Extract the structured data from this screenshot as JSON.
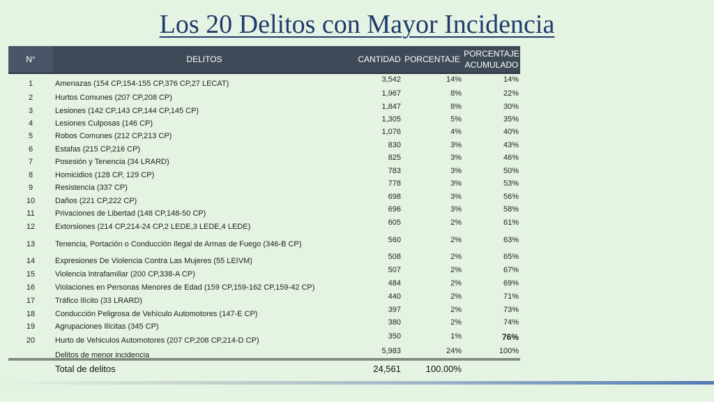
{
  "title": "Los 20 Delitos con Mayor Incidencia",
  "header": {
    "n": "N°",
    "delitos": "DELITOS",
    "cantidad": "CANTIDAD",
    "porcentaje": "PORCENTAJE",
    "acumulado": "PORCENTAJE ACUMULADO"
  },
  "rows": [
    {
      "n": "1",
      "delito": "Amenazas (154 CP,154-155 CP,376 CP,27 LECAT)",
      "cantidad": "3,542",
      "pct": "14%",
      "acum": "14%"
    },
    {
      "n": "2",
      "delito": "Hurtos Comunes (207 CP,208 CP)",
      "cantidad": "1,967",
      "pct": "8%",
      "acum": "22%"
    },
    {
      "n": "3",
      "delito": "Lesiones (142 CP,143 CP,144 CP,145 CP)",
      "cantidad": "1,847",
      "pct": "8%",
      "acum": "30%"
    },
    {
      "n": "4",
      "delito": "Lesiones Culposas (146 CP)",
      "cantidad": "1,305",
      "pct": "5%",
      "acum": "35%"
    },
    {
      "n": "5",
      "delito": "Robos Comunes (212 CP,213 CP)",
      "cantidad": "1,076",
      "pct": "4%",
      "acum": "40%"
    },
    {
      "n": "6",
      "delito": "Estafas (215 CP,216 CP)",
      "cantidad": "830",
      "pct": "3%",
      "acum": "43%"
    },
    {
      "n": "7",
      "delito": "Posesión y Tenencia (34 LRARD)",
      "cantidad": "825",
      "pct": "3%",
      "acum": "46%"
    },
    {
      "n": "8",
      "delito": "Homicidios (128 CP, 129 CP)",
      "cantidad": "783",
      "pct": "3%",
      "acum": "50%"
    },
    {
      "n": "9",
      "delito": "Resistencia (337 CP)",
      "cantidad": "778",
      "pct": "3%",
      "acum": "53%"
    },
    {
      "n": "10",
      "delito": "Daños (221 CP,222 CP)",
      "cantidad": "698",
      "pct": "3%",
      "acum": "56%"
    },
    {
      "n": "11",
      "delito": "Privaciones de Libertad (148 CP,148-50 CP)",
      "cantidad": "696",
      "pct": "3%",
      "acum": "58%"
    },
    {
      "n": "12",
      "delito": "Extorsiones (214 CP,214-24 CP,2 LEDE,3 LEDE,4 LEDE)",
      "cantidad": "605",
      "pct": "2%",
      "acum": "61%"
    },
    {
      "n": "13",
      "delito": "Tenencia, Portación o Conducción Ilegal de Armas de Fuego (346-B CP)",
      "cantidad": "560",
      "pct": "2%",
      "acum": "63%"
    },
    {
      "n": "14",
      "delito": "Expresiones De Violencia Contra Las Mujeres (55 LEIVM)",
      "cantidad": "508",
      "pct": "2%",
      "acum": "65%"
    },
    {
      "n": "15",
      "delito": "Violencia Intrafamiliar (200 CP,338-A CP)",
      "cantidad": "507",
      "pct": "2%",
      "acum": "67%"
    },
    {
      "n": "16",
      "delito": "Violaciones en Personas Menores de Edad (159 CP,159-162 CP,159-42 CP)",
      "cantidad": "484",
      "pct": "2%",
      "acum": "69%"
    },
    {
      "n": "17",
      "delito": "Tráfico Ilícito (33 LRARD)",
      "cantidad": "440",
      "pct": "2%",
      "acum": "71%"
    },
    {
      "n": "18",
      "delito": "Conducción Peligrosa de Vehículo Automotores (147-E CP)",
      "cantidad": "397",
      "pct": "2%",
      "acum": "73%"
    },
    {
      "n": "19",
      "delito": "Agrupaciones Ilícitas (345 CP)",
      "cantidad": "380",
      "pct": "2%",
      "acum": "74%"
    },
    {
      "n": "20",
      "delito": "Hurto de Vehiculos Automotores (207 CP,208 CP,214-D CP)",
      "cantidad": "350",
      "pct": "1%",
      "acum": "76%"
    },
    {
      "n": "",
      "delito": "Delitos de menor incidencia",
      "cantidad": "5,983",
      "pct": "24%",
      "acum": "100%"
    }
  ],
  "total": {
    "label": "Total de delitos",
    "cantidad": "24,561",
    "pct": "100.00%"
  }
}
